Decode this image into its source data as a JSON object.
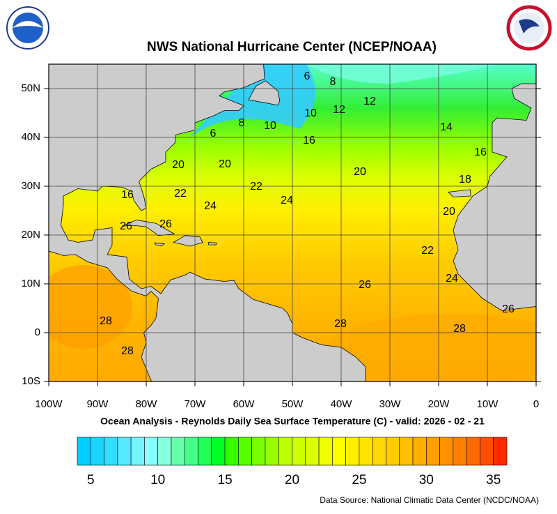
{
  "header": {
    "title": "NWS National Hurricane Center (NCEP/NOAA)"
  },
  "map": {
    "xlim": [
      -100,
      0
    ],
    "ylim": [
      -10,
      55
    ],
    "xticks": [
      {
        "value": -100,
        "label": "100W"
      },
      {
        "value": -90,
        "label": "90W"
      },
      {
        "value": -80,
        "label": "80W"
      },
      {
        "value": -70,
        "label": "70W"
      },
      {
        "value": -60,
        "label": "60W"
      },
      {
        "value": -50,
        "label": "50W"
      },
      {
        "value": -40,
        "label": "40W"
      },
      {
        "value": -30,
        "label": "30W"
      },
      {
        "value": -20,
        "label": "20W"
      },
      {
        "value": -10,
        "label": "10W"
      },
      0
    ],
    "yticks": [
      {
        "value": 50,
        "label": "50N"
      },
      {
        "value": 40,
        "label": "40N"
      },
      {
        "value": 30,
        "label": "30N"
      },
      {
        "value": 20,
        "label": "20N"
      },
      {
        "value": 10,
        "label": "10N"
      },
      0,
      {
        "value": -10,
        "label": "10S"
      }
    ],
    "contour_labels": [
      "6",
      "8",
      "12",
      "12",
      "10",
      "10",
      "8",
      "6",
      "16",
      "14",
      "16",
      "20",
      "20",
      "20",
      "18",
      "22",
      "22",
      "24",
      "24",
      "16",
      "26",
      "26",
      "20",
      "22",
      "24",
      "26",
      "28",
      "28",
      "28",
      "28",
      "26"
    ],
    "subtitle": "Ocean Analysis - Reynolds Daily Sea Surface Temperature (C) - valid: 2026 - 02 - 21"
  },
  "colorbar": {
    "range": [
      4,
      36
    ],
    "ticks": [
      5,
      10,
      15,
      20,
      25,
      30,
      35
    ],
    "colors": [
      "#00ccff",
      "#1ad4ff",
      "#33ddff",
      "#55e8ff",
      "#77f2ff",
      "#88ffff",
      "#88ffdd",
      "#66ffaa",
      "#44ff88",
      "#22ff55",
      "#00ff22",
      "#33ff00",
      "#55ff00",
      "#77ff00",
      "#99ff00",
      "#bbff00",
      "#ccff00",
      "#ddff00",
      "#eeff00",
      "#ffff00",
      "#fff000",
      "#ffe400",
      "#ffd800",
      "#ffcc00",
      "#ffbf00",
      "#ffb000",
      "#ffa000",
      "#ff9000",
      "#ff8000",
      "#ff6a00",
      "#ff5000",
      "#ff2a00"
    ]
  },
  "footer": {
    "source": "Data Source: National Climatic Data Center (NCDC/NOAA)"
  }
}
